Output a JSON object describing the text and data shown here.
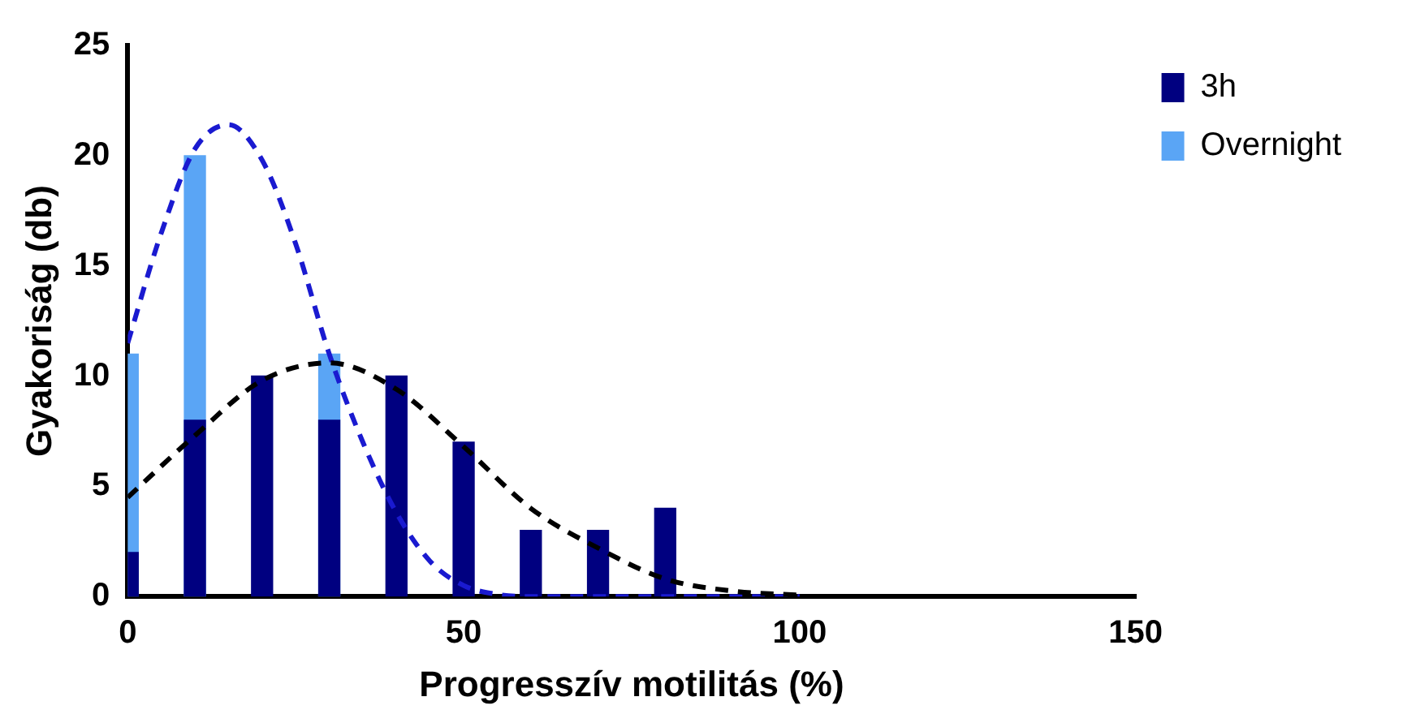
{
  "chart_data": {
    "type": "bar",
    "xlabel": "Progresszív motilitás (%)",
    "ylabel": "Gyakoriság (db)",
    "x": [
      0,
      10,
      20,
      30,
      40,
      50,
      60,
      70,
      80
    ],
    "xlim": [
      0,
      150
    ],
    "xticks": [
      0,
      50,
      100,
      150
    ],
    "ylim": [
      0,
      25
    ],
    "yticks": [
      0,
      5,
      10,
      15,
      20,
      25
    ],
    "grid": false,
    "legend": "top right",
    "series": [
      {
        "name": "3h",
        "color": "#000080",
        "values": [
          2,
          8,
          10,
          8,
          10,
          7,
          3,
          3,
          4
        ]
      },
      {
        "name": "Overnight",
        "color": "#5aa5f5",
        "values": [
          11,
          20,
          null,
          11,
          null,
          null,
          null,
          null,
          null
        ]
      },
      {
        "type": "line",
        "color": "#000000",
        "line_style": "dashed",
        "marker": "none",
        "x": [
          0,
          10,
          20,
          30,
          40,
          50,
          60,
          70,
          80,
          90,
          100
        ],
        "values": [
          4.5,
          7.3,
          9.8,
          10.6,
          9.4,
          6.8,
          4.0,
          2.2,
          0.8,
          0.25,
          0.06
        ]
      },
      {
        "type": "line",
        "color": "#1a1ad0",
        "line_style": "dashed",
        "marker": "none",
        "x": [
          0,
          5,
          10,
          15,
          20,
          25,
          30,
          35,
          40,
          45,
          50,
          55,
          60,
          80,
          100
        ],
        "values": [
          11.5,
          16.5,
          20.3,
          21.4,
          19.8,
          16,
          11,
          7,
          3.8,
          1.6,
          0.5,
          0.1,
          0,
          0,
          0
        ]
      }
    ]
  }
}
